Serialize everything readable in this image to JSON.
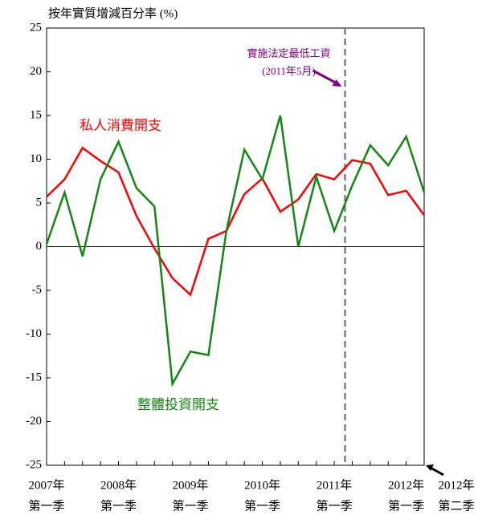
{
  "chart_data": {
    "type": "line",
    "title": "按年實質增減百分率 (%)",
    "categories": [
      [
        "2007年",
        "第一季"
      ],
      null,
      null,
      null,
      [
        "2008年",
        "第一季"
      ],
      null,
      null,
      null,
      [
        "2009年",
        "第一季"
      ],
      null,
      null,
      null,
      [
        "2010年",
        "第一季"
      ],
      null,
      null,
      null,
      [
        "2011年",
        "第一季"
      ],
      null,
      null,
      null,
      [
        "2012年",
        "第一季"
      ],
      [
        "2012年",
        "第二季"
      ]
    ],
    "series": [
      {
        "name": "私人消費開支",
        "color": "#ff0000",
        "values": [
          5.7,
          7.7,
          11.3,
          9.8,
          8.5,
          3.5,
          -0.2,
          -3.6,
          -5.5,
          0.9,
          1.8,
          6.0,
          7.8,
          4.0,
          5.4,
          8.3,
          7.7,
          9.9,
          9.5,
          5.9,
          6.4,
          3.6
        ]
      },
      {
        "name": "整體投資開支",
        "color": "#118811",
        "values": [
          0.3,
          6.2,
          -1.1,
          7.7,
          12.0,
          6.7,
          4.6,
          -15.7,
          -12.0,
          -12.4,
          1.8,
          11.1,
          7.7,
          15.0,
          0.0,
          8.0,
          1.8,
          7.0,
          11.6,
          9.3,
          12.6,
          6.2
        ]
      }
    ],
    "ylim": [
      -25,
      25
    ],
    "yticks": [
      -25,
      -20,
      -15,
      -10,
      -5,
      0,
      5,
      10,
      15,
      20,
      25
    ],
    "grid": false,
    "annotation": {
      "lines": [
        "實施法定最低工資",
        "(2011年5月)"
      ],
      "color": "#800080",
      "x": 16.6
    }
  }
}
